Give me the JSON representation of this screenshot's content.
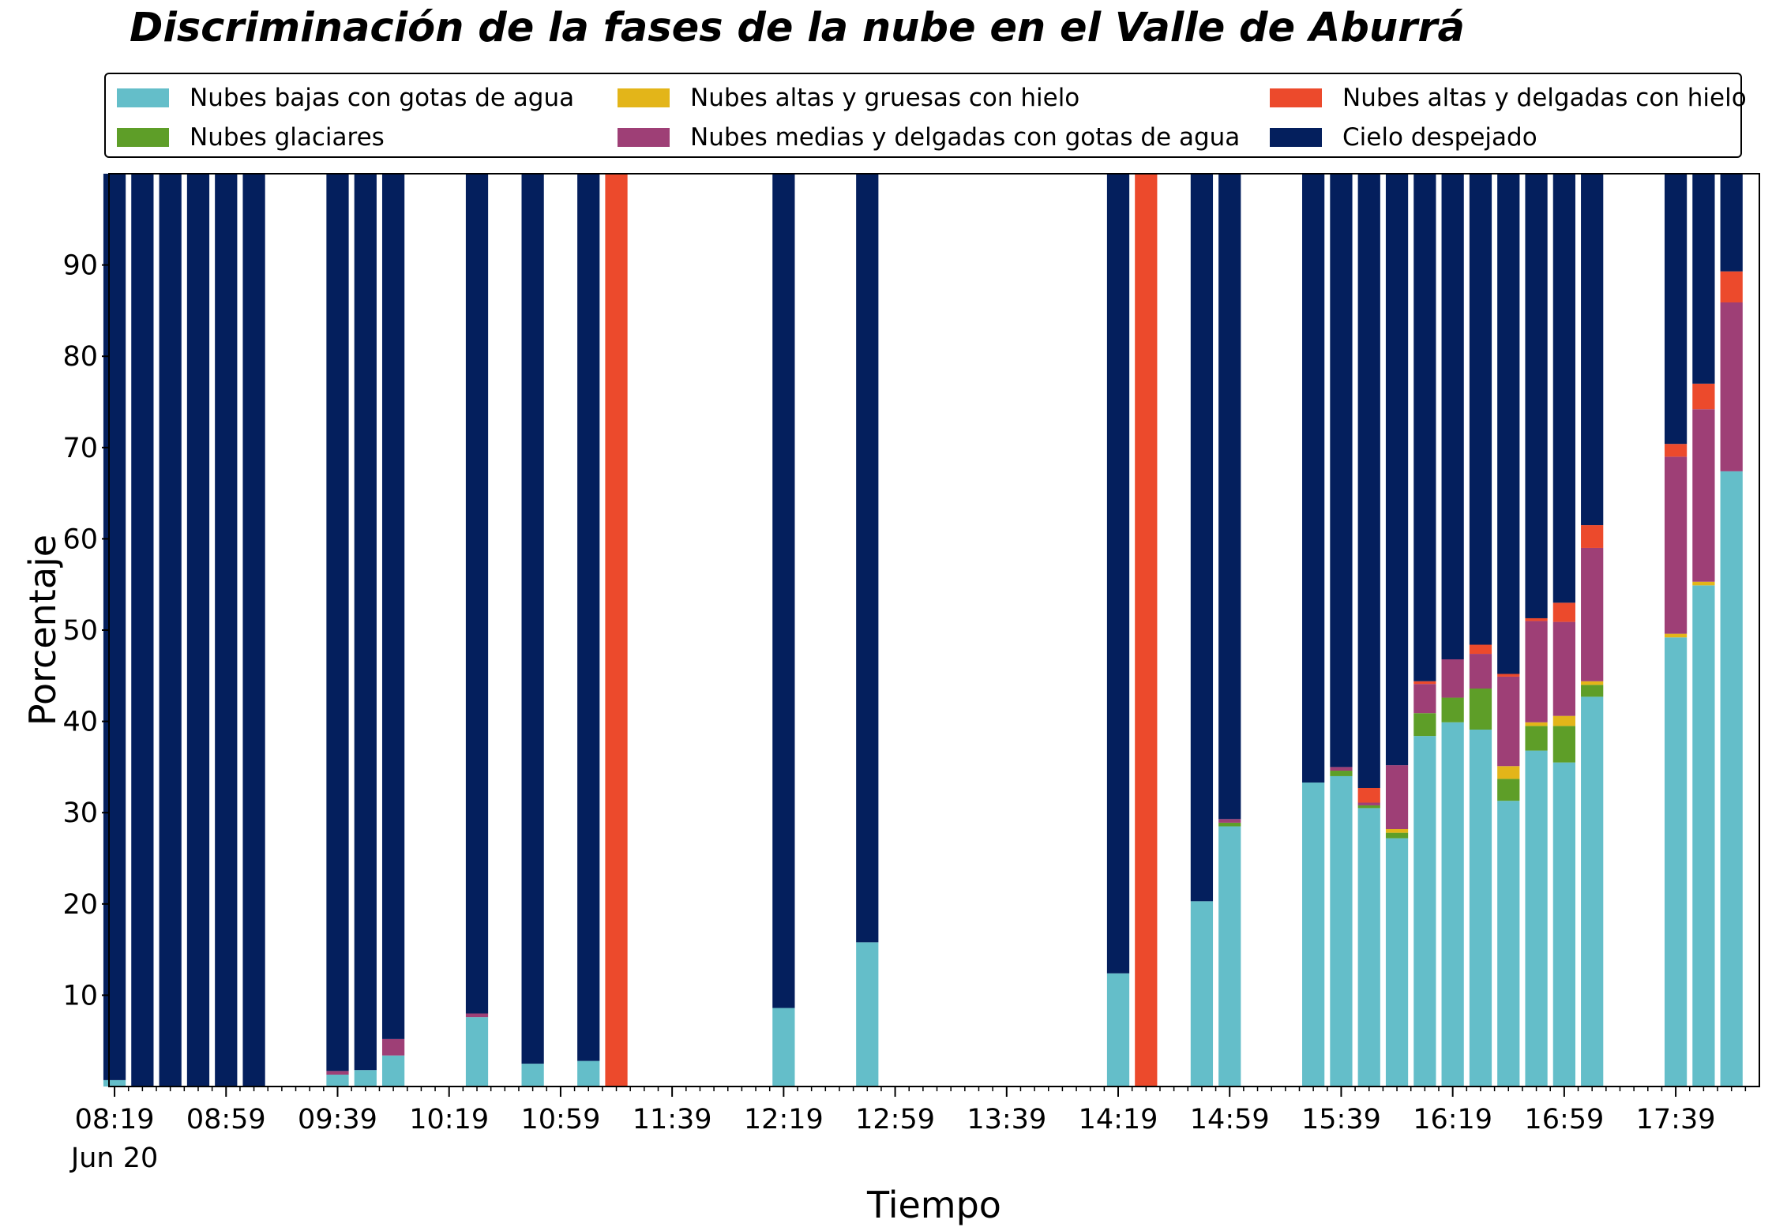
{
  "chart_data": {
    "type": "bar",
    "stacked": true,
    "title": "Discriminación de la fases de la nube en el Valle de Aburrá",
    "xlabel": "Tiempo",
    "ylabel": "Porcentaje",
    "ylim": [
      0,
      100
    ],
    "yticks": [
      10,
      20,
      30,
      40,
      50,
      60,
      70,
      80,
      90
    ],
    "xticks": [
      {
        "minute": 499,
        "label": "08:19",
        "sublabel": "Jun 20"
      },
      {
        "minute": 539,
        "label": "08:59"
      },
      {
        "minute": 579,
        "label": "09:39"
      },
      {
        "minute": 619,
        "label": "10:19"
      },
      {
        "minute": 659,
        "label": "10:59"
      },
      {
        "minute": 699,
        "label": "11:39"
      },
      {
        "minute": 739,
        "label": "12:19"
      },
      {
        "minute": 779,
        "label": "12:59"
      },
      {
        "minute": 819,
        "label": "13:39"
      },
      {
        "minute": 859,
        "label": "14:19"
      },
      {
        "minute": 899,
        "label": "14:59"
      },
      {
        "minute": 939,
        "label": "15:39"
      },
      {
        "minute": 979,
        "label": "16:19"
      },
      {
        "minute": 1019,
        "label": "16:59"
      },
      {
        "minute": 1059,
        "label": "17:39"
      }
    ],
    "xlim_minutes": [
      497,
      1089
    ],
    "grid": false,
    "legend_position": "top",
    "series_names": [
      "Nubes bajas con gotas de agua",
      "Nubes glaciares",
      "Nubes altas y gruesas con hielo",
      "Nubes medias y delgadas con gotas de agua",
      "Nubes altas y delgadas con hielo",
      "Cielo despejado"
    ],
    "series_colors": [
      "#64bec9",
      "#5e9e28",
      "#e3b519",
      "#9e3f76",
      "#ec4a2c",
      "#041f5d"
    ],
    "bars": [
      {
        "time": "08:19",
        "values": [
          0.7,
          0,
          0,
          0,
          0,
          99.3
        ]
      },
      {
        "time": "08:29",
        "values": [
          0,
          0,
          0,
          0,
          0,
          100
        ]
      },
      {
        "time": "08:39",
        "values": [
          0,
          0,
          0,
          0,
          0,
          100
        ]
      },
      {
        "time": "08:49",
        "values": [
          0,
          0,
          0,
          0,
          0,
          100
        ]
      },
      {
        "time": "08:59",
        "values": [
          0,
          0,
          0,
          0,
          0,
          100
        ]
      },
      {
        "time": "09:09",
        "values": [
          0,
          0,
          0,
          0,
          0,
          100
        ]
      },
      {
        "time": "09:39",
        "values": [
          1.3,
          0,
          0,
          0.4,
          0,
          98.3
        ]
      },
      {
        "time": "09:49",
        "values": [
          1.8,
          0,
          0,
          0,
          0,
          98.2
        ]
      },
      {
        "time": "09:59",
        "values": [
          3.4,
          0,
          0,
          1.8,
          0,
          94.8
        ]
      },
      {
        "time": "10:29",
        "values": [
          7.6,
          0,
          0,
          0.4,
          0,
          92.0
        ]
      },
      {
        "time": "10:49",
        "values": [
          2.5,
          0,
          0,
          0,
          0,
          97.5
        ]
      },
      {
        "time": "11:09",
        "values": [
          2.8,
          0,
          0,
          0,
          0,
          97.2
        ]
      },
      {
        "time": "11:19",
        "values": [
          0,
          0,
          0,
          0,
          100,
          0
        ]
      },
      {
        "time": "12:19",
        "values": [
          8.6,
          0,
          0,
          0,
          0,
          91.4
        ]
      },
      {
        "time": "12:49",
        "values": [
          15.8,
          0,
          0,
          0,
          0,
          84.2
        ]
      },
      {
        "time": "14:19",
        "values": [
          12.4,
          0,
          0,
          0,
          0,
          87.6
        ]
      },
      {
        "time": "14:29",
        "values": [
          0,
          0,
          0,
          0,
          100,
          0
        ]
      },
      {
        "time": "14:49",
        "values": [
          20.3,
          0,
          0,
          0,
          0,
          79.7
        ]
      },
      {
        "time": "14:59",
        "values": [
          28.5,
          0.4,
          0,
          0.4,
          0,
          70.7
        ]
      },
      {
        "time": "15:29",
        "values": [
          33.3,
          0,
          0,
          0,
          0,
          66.7
        ]
      },
      {
        "time": "15:39",
        "values": [
          34.0,
          0.6,
          0,
          0.4,
          0,
          65.0
        ]
      },
      {
        "time": "15:49",
        "values": [
          30.5,
          0.3,
          0,
          0.3,
          1.6,
          67.3
        ]
      },
      {
        "time": "15:59",
        "values": [
          27.2,
          0.6,
          0.4,
          7.0,
          0,
          64.8
        ]
      },
      {
        "time": "16:09",
        "values": [
          38.4,
          2.5,
          0,
          3.2,
          0.3,
          55.6
        ]
      },
      {
        "time": "16:19",
        "values": [
          39.9,
          2.7,
          0,
          4.2,
          0,
          53.2
        ]
      },
      {
        "time": "16:29",
        "values": [
          39.1,
          4.5,
          0,
          3.8,
          1.0,
          51.6
        ]
      },
      {
        "time": "16:39",
        "values": [
          31.3,
          2.4,
          1.4,
          9.8,
          0.3,
          54.8
        ]
      },
      {
        "time": "16:49",
        "values": [
          36.8,
          2.7,
          0.4,
          11.1,
          0.3,
          48.7
        ]
      },
      {
        "time": "16:59",
        "values": [
          35.5,
          4.0,
          1.1,
          10.3,
          2.1,
          47.0
        ]
      },
      {
        "time": "17:09",
        "values": [
          42.7,
          1.3,
          0.4,
          14.6,
          2.5,
          38.5
        ]
      },
      {
        "time": "17:39",
        "values": [
          49.2,
          0,
          0.4,
          19.4,
          1.4,
          29.6
        ]
      },
      {
        "time": "17:49",
        "values": [
          54.9,
          0,
          0.4,
          18.9,
          2.8,
          23.0
        ]
      },
      {
        "time": "17:59",
        "values": [
          67.4,
          0,
          0,
          18.5,
          3.4,
          10.7
        ]
      }
    ]
  },
  "legend": {
    "items": [
      {
        "label": "Nubes bajas con gotas de agua",
        "color": "#64bec9"
      },
      {
        "label": "Nubes glaciares",
        "color": "#5e9e28"
      },
      {
        "label": "Nubes altas y gruesas con hielo",
        "color": "#e3b519"
      },
      {
        "label": "Nubes medias y delgadas con gotas de agua",
        "color": "#9e3f76"
      },
      {
        "label": "Nubes altas y delgadas con hielo",
        "color": "#ec4a2c"
      },
      {
        "label": "Cielo despejado",
        "color": "#041f5d"
      }
    ]
  }
}
